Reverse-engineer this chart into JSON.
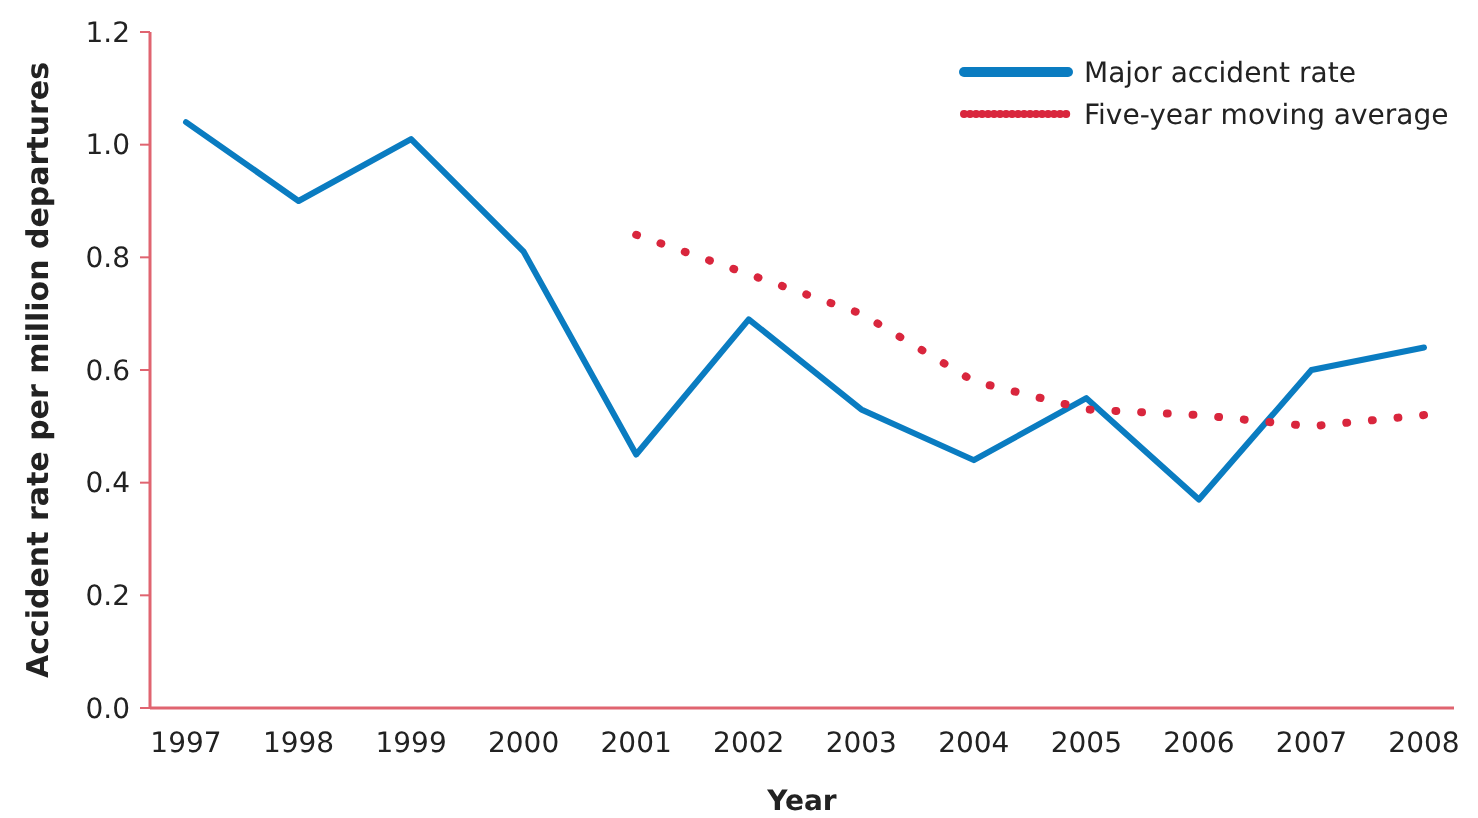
{
  "chart_data": {
    "type": "line",
    "xlabel": "Year",
    "ylabel": "Accident rate per million departures",
    "categories": [
      "1997",
      "1998",
      "1999",
      "2000",
      "2001",
      "2002",
      "2003",
      "2004",
      "2005",
      "2006",
      "2007",
      "2008"
    ],
    "series": [
      {
        "name": "Major accident rate",
        "color": "#0a7cc1",
        "line_style": "solid",
        "values": [
          1.04,
          0.9,
          1.01,
          0.81,
          0.45,
          0.69,
          0.53,
          0.44,
          0.55,
          0.37,
          0.6,
          0.64
        ]
      },
      {
        "name": "Five-year moving average",
        "color": "#d9263d",
        "line_style": "dotted",
        "values": [
          null,
          null,
          null,
          null,
          0.84,
          0.77,
          0.7,
          0.58,
          0.53,
          0.52,
          0.5,
          0.52
        ]
      }
    ],
    "ylim": [
      0,
      1.2
    ],
    "yticks": [
      {
        "value": 0,
        "label": "0.0"
      },
      0.2,
      0.4,
      0.6,
      0.8,
      {
        "value": 1,
        "label": "1.0"
      },
      1.2
    ],
    "legend": "top right",
    "marker": "none",
    "grid": false
  }
}
